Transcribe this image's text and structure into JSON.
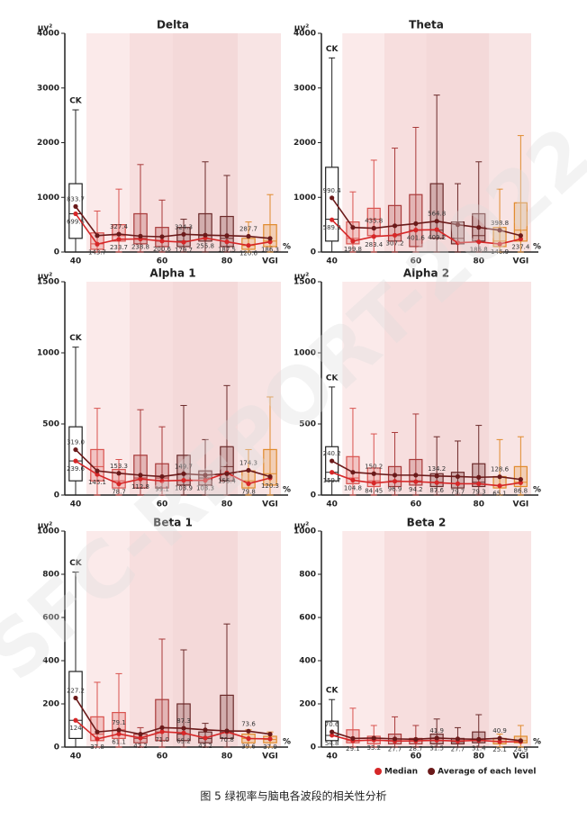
{
  "watermark": "SFC-REPORT-2022",
  "caption": "图 5 绿视率与脑电各波段的相关性分析",
  "legend": [
    {
      "name": "Median",
      "color": "#d62728"
    },
    {
      "name": "Average of each level",
      "color": "#6b1a1a"
    }
  ],
  "chart_data": [
    {
      "type": "box",
      "title": "Delta",
      "y_label": "μv²",
      "ck_label": "CK",
      "x_unit": "%",
      "categories": [
        "40",
        null,
        null,
        null,
        "60",
        null,
        null,
        "80",
        null,
        "VGI"
      ],
      "box_colors": [
        "#222222",
        "#d9534f",
        "#d9534f",
        "#a83a3a",
        "#a83a3a",
        "#6b2a2a",
        "#6b2a2a",
        "#6b2a2a",
        "#e08a2c",
        "#e08a2c"
      ],
      "ylim": [
        0,
        4000
      ],
      "yticks": [
        0,
        1000,
        2000,
        3000,
        4000
      ],
      "boxes": [
        [
          0,
          250,
          700,
          1250,
          2600
        ],
        [
          0,
          50,
          150,
          350,
          750
        ],
        [
          0,
          200,
          300,
          500,
          1150
        ],
        [
          0,
          150,
          250,
          700,
          1600
        ],
        [
          0,
          100,
          200,
          450,
          950
        ],
        [
          0,
          100,
          200,
          450,
          600
        ],
        [
          0,
          200,
          300,
          700,
          1650
        ],
        [
          0,
          100,
          250,
          650,
          1400
        ],
        [
          0,
          50,
          120,
          250,
          550
        ],
        [
          0,
          100,
          200,
          500,
          1050
        ]
      ],
      "medians": {
        "values": [
          699.5,
          143.7,
          233.7,
          238.8,
          200.6,
          179.7,
          255.8,
          187.5,
          120.6,
          186.3
        ],
        "value_labels": [
          "699.5",
          "143.7",
          "233.7",
          "238.8",
          "200.6",
          "179.7",
          "255.8",
          "187.5",
          "120.6",
          "186.3"
        ]
      },
      "means": {
        "values": [
          833.7,
          300,
          327.4,
          290,
          280,
          324.3,
          310,
          300,
          287.7,
          250
        ],
        "value_labels": [
          "833.7",
          null,
          "327.4",
          null,
          null,
          "324.3",
          null,
          null,
          "287.7",
          null
        ]
      }
    },
    {
      "type": "box",
      "title": "Theta",
      "y_label": "μv²",
      "ck_label": "CK",
      "x_unit": "%",
      "categories": [
        "40",
        null,
        null,
        null,
        "60",
        null,
        null,
        "80",
        null,
        "VGI"
      ],
      "box_colors": [
        "#222222",
        "#d9534f",
        "#d9534f",
        "#a83a3a",
        "#a83a3a",
        "#6b2a2a",
        "#6b2a2a",
        "#6b2a2a",
        "#e08a2c",
        "#e08a2c"
      ],
      "ylim": [
        0,
        4000
      ],
      "yticks": [
        0,
        1000,
        2000,
        3000,
        4000
      ],
      "boxes": [
        [
          0,
          200,
          600,
          1550,
          3550
        ],
        [
          0,
          150,
          250,
          550,
          1100
        ],
        [
          0,
          300,
          600,
          800,
          1680
        ],
        [
          0,
          200,
          300,
          850,
          1900
        ],
        [
          0,
          100,
          400,
          1050,
          2280
        ],
        [
          0,
          250,
          400,
          1250,
          2870
        ],
        [
          0,
          150,
          250,
          550,
          1250
        ],
        [
          0,
          200,
          300,
          700,
          1650
        ],
        [
          0,
          100,
          200,
          450,
          1150
        ],
        [
          0,
          200,
          400,
          900,
          2130
        ]
      ],
      "medians": {
        "values": [
          589.9,
          199.8,
          283.4,
          307.2,
          401.6,
          409.2,
          170,
          185.8,
          146.9,
          237.4
        ],
        "value_labels": [
          "589.9",
          "199.8",
          "283.4",
          "307.2",
          "401.6",
          "409.2",
          null,
          "185.8",
          "146.9",
          "237.4"
        ]
      },
      "means": {
        "values": [
          990.4,
          450,
          435.8,
          480,
          520,
          564.8,
          500,
          450,
          398.8,
          300
        ],
        "value_labels": [
          "990.4",
          null,
          "435.8",
          null,
          null,
          "564.8",
          null,
          null,
          "398.8",
          null
        ]
      }
    },
    {
      "type": "box",
      "title": "Alpha 1",
      "y_label": "μv²",
      "ck_label": "CK",
      "x_unit": "%",
      "categories": [
        "40",
        null,
        null,
        null,
        "60",
        null,
        null,
        "80",
        null,
        "VGI"
      ],
      "box_colors": [
        "#222222",
        "#d9534f",
        "#d9534f",
        "#a83a3a",
        "#a83a3a",
        "#6b2a2a",
        "#6b2a2a",
        "#6b2a2a",
        "#e08a2c",
        "#e08a2c"
      ],
      "ylim": [
        0,
        1500
      ],
      "yticks": [
        0,
        500,
        1000,
        1500
      ],
      "boxes": [
        [
          0,
          100,
          240,
          480,
          1040
        ],
        [
          0,
          100,
          200,
          320,
          610
        ],
        [
          0,
          50,
          100,
          180,
          250
        ],
        [
          0,
          50,
          120,
          280,
          600
        ],
        [
          0,
          50,
          120,
          220,
          480
        ],
        [
          0,
          70,
          150,
          280,
          630
        ],
        [
          0,
          70,
          120,
          170,
          390
        ],
        [
          0,
          100,
          200,
          340,
          770
        ],
        [
          0,
          50,
          100,
          170,
          320
        ],
        [
          0,
          70,
          150,
          320,
          690
        ]
      ],
      "medians": {
        "values": [
          239.6,
          145.1,
          78.7,
          112.8,
          99.1,
          103.9,
          103.3,
          156.4,
          79.8,
          120.3
        ],
        "value_labels": [
          "239.6",
          "145.1",
          "78.7",
          "112.8",
          "99.1",
          "103.9",
          "103.3",
          "156.4",
          "79.8",
          "120.3"
        ]
      },
      "means": {
        "values": [
          319.0,
          170,
          153.3,
          140,
          130,
          149.7,
          140,
          150,
          174.3,
          130
        ],
        "value_labels": [
          "319.0",
          null,
          "153.3",
          null,
          null,
          "149.7",
          null,
          null,
          "174.3",
          null
        ]
      }
    },
    {
      "type": "box",
      "title": "Alpha 2",
      "y_label": "μv²",
      "ck_label": "CK",
      "x_unit": "%",
      "categories": [
        "40",
        null,
        null,
        null,
        "60",
        null,
        null,
        "80",
        null,
        "VGI"
      ],
      "box_colors": [
        "#222222",
        "#d9534f",
        "#d9534f",
        "#a83a3a",
        "#a83a3a",
        "#6b2a2a",
        "#6b2a2a",
        "#6b2a2a",
        "#e08a2c",
        "#e08a2c"
      ],
      "ylim": [
        0,
        1500
      ],
      "yticks": [
        0,
        500,
        1000,
        1500
      ],
      "boxes": [
        [
          0,
          100,
          160,
          340,
          760
        ],
        [
          0,
          80,
          120,
          270,
          610
        ],
        [
          0,
          60,
          100,
          190,
          430
        ],
        [
          0,
          60,
          100,
          200,
          440
        ],
        [
          0,
          70,
          100,
          250,
          570
        ],
        [
          0,
          60,
          90,
          150,
          410
        ],
        [
          0,
          50,
          80,
          160,
          380
        ],
        [
          0,
          60,
          90,
          220,
          490
        ],
        [
          0,
          50,
          70,
          130,
          390
        ],
        [
          0,
          60,
          90,
          200,
          410
        ]
      ],
      "medians": {
        "values": [
          159.7,
          104.8,
          84.45,
          96.9,
          94.2,
          87.6,
          79.7,
          79.3,
          65.1,
          86.8
        ],
        "value_labels": [
          "159.7",
          "104.8",
          "84.45",
          "96.9",
          "94.2",
          "87.6",
          "79.7",
          "79.3",
          "65.1",
          "86.8"
        ]
      },
      "means": {
        "values": [
          240.2,
          160,
          150.2,
          140,
          140,
          134.2,
          130,
          125,
          128.6,
          110
        ],
        "value_labels": [
          "240.2",
          null,
          "150.2",
          null,
          null,
          "134.2",
          null,
          null,
          "128.6",
          null
        ]
      }
    },
    {
      "type": "box",
      "title": "Beta 1",
      "y_label": "μv²",
      "ck_label": "CK",
      "x_unit": "%",
      "categories": [
        "40",
        null,
        null,
        null,
        "60",
        null,
        null,
        "80",
        null,
        "VGI"
      ],
      "box_colors": [
        "#222222",
        "#d9534f",
        "#d9534f",
        "#a83a3a",
        "#a83a3a",
        "#6b2a2a",
        "#6b2a2a",
        "#6b2a2a",
        "#e08a2c",
        "#e08a2c"
      ],
      "ylim": [
        0,
        1000
      ],
      "yticks": [
        0,
        200,
        400,
        600,
        800,
        1000
      ],
      "boxes": [
        [
          0,
          40,
          124,
          350,
          810
        ],
        [
          0,
          30,
          60,
          140,
          300
        ],
        [
          0,
          40,
          80,
          160,
          340
        ],
        [
          0,
          20,
          40,
          60,
          90
        ],
        [
          0,
          30,
          70,
          220,
          500
        ],
        [
          0,
          30,
          60,
          200,
          450
        ],
        [
          0,
          20,
          40,
          70,
          110
        ],
        [
          0,
          40,
          70,
          240,
          570
        ],
        [
          0,
          20,
          40,
          60,
          80
        ],
        [
          0,
          20,
          35,
          50,
          70
        ]
      ],
      "medians": {
        "values": [
          124,
          37.8,
          61.1,
          42.2,
          71.0,
          65.2,
          42.2,
          70.8,
          39.6,
          37.9
        ],
        "value_labels": [
          "124",
          "37.8",
          "61.1",
          "42.2",
          "71.0",
          "65.2",
          "42.2",
          "70.8",
          "39.6",
          "37.9"
        ]
      },
      "means": {
        "values": [
          227.2,
          70,
          79.1,
          60,
          90,
          87.3,
          80,
          75,
          73.6,
          60
        ],
        "value_labels": [
          "227.2",
          null,
          "79.1",
          null,
          null,
          "87.3",
          null,
          null,
          "73.6",
          null
        ]
      }
    },
    {
      "type": "box",
      "title": "Beta 2",
      "y_label": "μv²",
      "ck_label": "CK",
      "x_unit": "%",
      "categories": [
        "40",
        null,
        null,
        null,
        "60",
        null,
        null,
        "80",
        null,
        "VGI"
      ],
      "box_colors": [
        "#222222",
        "#d9534f",
        "#d9534f",
        "#a83a3a",
        "#a83a3a",
        "#6b2a2a",
        "#6b2a2a",
        "#6b2a2a",
        "#e08a2c",
        "#e08a2c"
      ],
      "ylim": [
        0,
        1000
      ],
      "yticks": [
        0,
        200,
        400,
        600,
        800,
        1000
      ],
      "boxes": [
        [
          0,
          30,
          54,
          120,
          220
        ],
        [
          0,
          20,
          30,
          80,
          180
        ],
        [
          0,
          15,
          30,
          50,
          100
        ],
        [
          0,
          15,
          30,
          60,
          140
        ],
        [
          0,
          15,
          30,
          40,
          100
        ],
        [
          0,
          15,
          30,
          60,
          130
        ],
        [
          0,
          15,
          25,
          40,
          90
        ],
        [
          0,
          20,
          30,
          70,
          150
        ],
        [
          0,
          15,
          25,
          40,
          60
        ],
        [
          0,
          20,
          30,
          50,
          100
        ]
      ],
      "medians": {
        "values": [
          54.8,
          29.1,
          33.2,
          27.7,
          28.7,
          31.5,
          27.7,
          31.4,
          25.1,
          24.9
        ],
        "value_labels": [
          "54.8",
          "29.1",
          "33.2",
          "27.7",
          "28.7",
          "31.5",
          "27.7",
          "31.4",
          "25.1",
          "24.9"
        ]
      },
      "means": {
        "values": [
          70.6,
          40,
          42,
          38,
          36,
          41.9,
          38,
          36,
          40.9,
          30
        ],
        "value_labels": [
          "70.6",
          null,
          null,
          null,
          null,
          "41.9",
          null,
          null,
          "40.9",
          null
        ]
      }
    }
  ]
}
